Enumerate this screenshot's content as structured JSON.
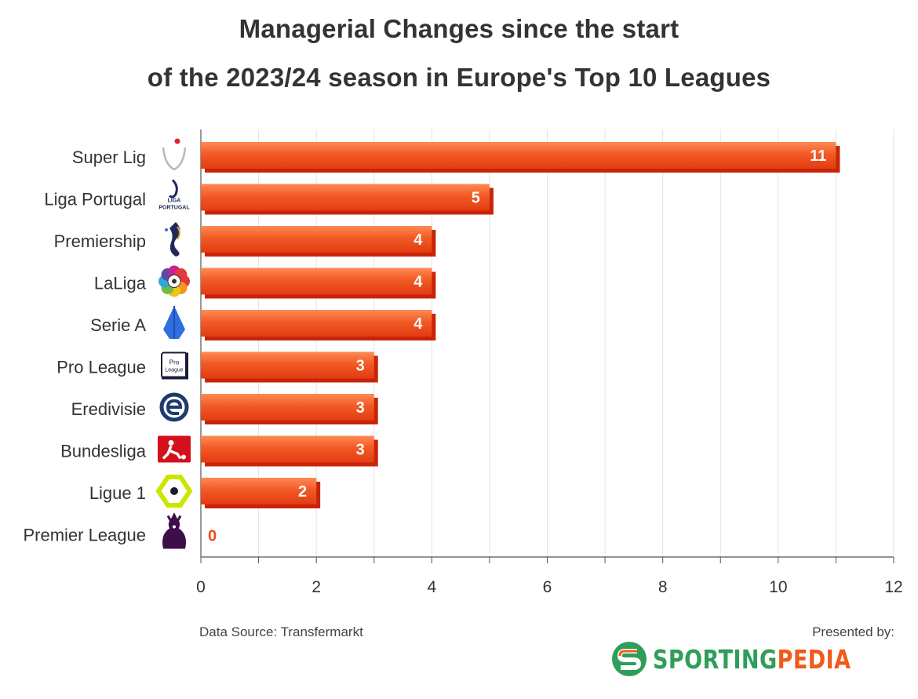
{
  "title_lines": [
    "Managerial Changes since the start",
    "of the 2023/24 season in Europe's Top 10 Leagues"
  ],
  "chart_data": {
    "type": "bar",
    "orientation": "horizontal",
    "categories": [
      "Super Lig",
      "Liga Portugal",
      "Premiership",
      "LaLiga",
      "Serie A",
      "Pro League",
      "Eredivisie",
      "Bundesliga",
      "Ligue 1",
      "Premier League"
    ],
    "values": [
      11,
      5,
      4,
      4,
      4,
      3,
      3,
      3,
      2,
      0
    ],
    "xlim": [
      0,
      12
    ],
    "xticks": [
      0,
      2,
      4,
      6,
      8,
      10,
      12
    ],
    "grid": true,
    "bar_color": "#f04a1a",
    "value_label_color": "#ffffff",
    "zero_label_color": "#f04a1a"
  },
  "icons": [
    "super-lig-logo",
    "liga-portugal-logo",
    "premiership-logo",
    "laliga-logo",
    "serie-a-logo",
    "pro-league-logo",
    "eredivisie-logo",
    "bundesliga-logo",
    "ligue-1-logo",
    "premier-league-logo"
  ],
  "logo_text": {
    "liga_portugal": [
      "LIGA",
      "PORTUGAL"
    ],
    "pro_league": [
      "Pro",
      "League"
    ]
  },
  "footer": {
    "source": "Data Source: Transfermarkt",
    "presented_by": "Presented by:",
    "brand_part1": "SPORTING",
    "brand_part2": "PEDIA",
    "brand_color_1": "#2f9e5a",
    "brand_color_2": "#f05a1a"
  }
}
